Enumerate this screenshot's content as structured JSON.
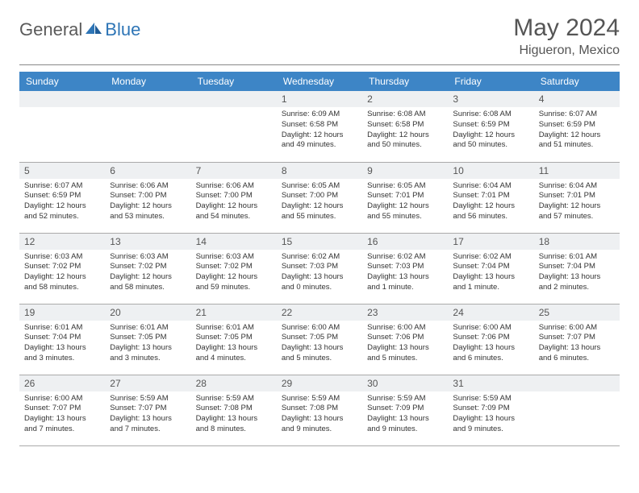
{
  "logo": {
    "general": "General",
    "blue": "Blue"
  },
  "title": "May 2024",
  "location": "Higueron, Mexico",
  "colors": {
    "header_bg": "#3d85c6",
    "header_text": "#ffffff",
    "daynum_bg": "#eef0f2",
    "text": "#333333",
    "logo_blue": "#2e75b6",
    "logo_gray": "#5a5a5a"
  },
  "day_headers": [
    "Sunday",
    "Monday",
    "Tuesday",
    "Wednesday",
    "Thursday",
    "Friday",
    "Saturday"
  ],
  "weeks": [
    [
      {
        "n": "",
        "sr": "",
        "ss": "",
        "dl": ""
      },
      {
        "n": "",
        "sr": "",
        "ss": "",
        "dl": ""
      },
      {
        "n": "",
        "sr": "",
        "ss": "",
        "dl": ""
      },
      {
        "n": "1",
        "sr": "6:09 AM",
        "ss": "6:58 PM",
        "dl": "12 hours and 49 minutes."
      },
      {
        "n": "2",
        "sr": "6:08 AM",
        "ss": "6:58 PM",
        "dl": "12 hours and 50 minutes."
      },
      {
        "n": "3",
        "sr": "6:08 AM",
        "ss": "6:59 PM",
        "dl": "12 hours and 50 minutes."
      },
      {
        "n": "4",
        "sr": "6:07 AM",
        "ss": "6:59 PM",
        "dl": "12 hours and 51 minutes."
      }
    ],
    [
      {
        "n": "5",
        "sr": "6:07 AM",
        "ss": "6:59 PM",
        "dl": "12 hours and 52 minutes."
      },
      {
        "n": "6",
        "sr": "6:06 AM",
        "ss": "7:00 PM",
        "dl": "12 hours and 53 minutes."
      },
      {
        "n": "7",
        "sr": "6:06 AM",
        "ss": "7:00 PM",
        "dl": "12 hours and 54 minutes."
      },
      {
        "n": "8",
        "sr": "6:05 AM",
        "ss": "7:00 PM",
        "dl": "12 hours and 55 minutes."
      },
      {
        "n": "9",
        "sr": "6:05 AM",
        "ss": "7:01 PM",
        "dl": "12 hours and 55 minutes."
      },
      {
        "n": "10",
        "sr": "6:04 AM",
        "ss": "7:01 PM",
        "dl": "12 hours and 56 minutes."
      },
      {
        "n": "11",
        "sr": "6:04 AM",
        "ss": "7:01 PM",
        "dl": "12 hours and 57 minutes."
      }
    ],
    [
      {
        "n": "12",
        "sr": "6:03 AM",
        "ss": "7:02 PM",
        "dl": "12 hours and 58 minutes."
      },
      {
        "n": "13",
        "sr": "6:03 AM",
        "ss": "7:02 PM",
        "dl": "12 hours and 58 minutes."
      },
      {
        "n": "14",
        "sr": "6:03 AM",
        "ss": "7:02 PM",
        "dl": "12 hours and 59 minutes."
      },
      {
        "n": "15",
        "sr": "6:02 AM",
        "ss": "7:03 PM",
        "dl": "13 hours and 0 minutes."
      },
      {
        "n": "16",
        "sr": "6:02 AM",
        "ss": "7:03 PM",
        "dl": "13 hours and 1 minute."
      },
      {
        "n": "17",
        "sr": "6:02 AM",
        "ss": "7:04 PM",
        "dl": "13 hours and 1 minute."
      },
      {
        "n": "18",
        "sr": "6:01 AM",
        "ss": "7:04 PM",
        "dl": "13 hours and 2 minutes."
      }
    ],
    [
      {
        "n": "19",
        "sr": "6:01 AM",
        "ss": "7:04 PM",
        "dl": "13 hours and 3 minutes."
      },
      {
        "n": "20",
        "sr": "6:01 AM",
        "ss": "7:05 PM",
        "dl": "13 hours and 3 minutes."
      },
      {
        "n": "21",
        "sr": "6:01 AM",
        "ss": "7:05 PM",
        "dl": "13 hours and 4 minutes."
      },
      {
        "n": "22",
        "sr": "6:00 AM",
        "ss": "7:05 PM",
        "dl": "13 hours and 5 minutes."
      },
      {
        "n": "23",
        "sr": "6:00 AM",
        "ss": "7:06 PM",
        "dl": "13 hours and 5 minutes."
      },
      {
        "n": "24",
        "sr": "6:00 AM",
        "ss": "7:06 PM",
        "dl": "13 hours and 6 minutes."
      },
      {
        "n": "25",
        "sr": "6:00 AM",
        "ss": "7:07 PM",
        "dl": "13 hours and 6 minutes."
      }
    ],
    [
      {
        "n": "26",
        "sr": "6:00 AM",
        "ss": "7:07 PM",
        "dl": "13 hours and 7 minutes."
      },
      {
        "n": "27",
        "sr": "5:59 AM",
        "ss": "7:07 PM",
        "dl": "13 hours and 7 minutes."
      },
      {
        "n": "28",
        "sr": "5:59 AM",
        "ss": "7:08 PM",
        "dl": "13 hours and 8 minutes."
      },
      {
        "n": "29",
        "sr": "5:59 AM",
        "ss": "7:08 PM",
        "dl": "13 hours and 9 minutes."
      },
      {
        "n": "30",
        "sr": "5:59 AM",
        "ss": "7:09 PM",
        "dl": "13 hours and 9 minutes."
      },
      {
        "n": "31",
        "sr": "5:59 AM",
        "ss": "7:09 PM",
        "dl": "13 hours and 9 minutes."
      },
      {
        "n": "",
        "sr": "",
        "ss": "",
        "dl": ""
      }
    ]
  ],
  "labels": {
    "sunrise": "Sunrise:",
    "sunset": "Sunset:",
    "daylight": "Daylight:"
  }
}
